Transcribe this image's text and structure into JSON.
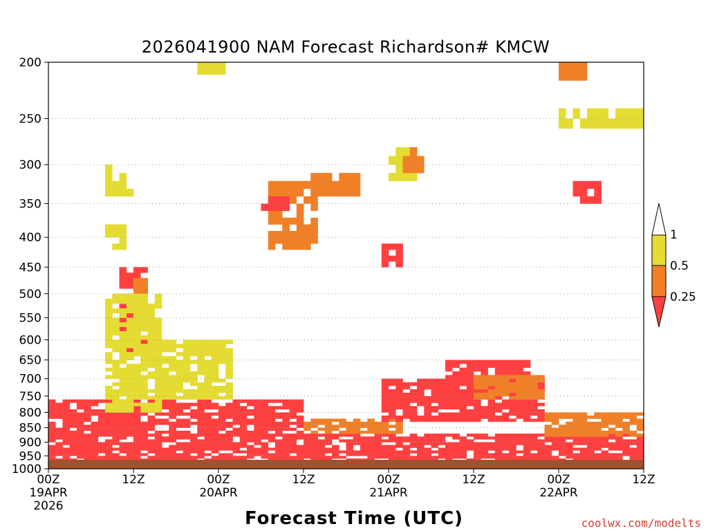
{
  "chart_data": {
    "type": "heatmap",
    "title": "2026041900 NAM Forecast Richardson# KMCW",
    "xlabel": "Forecast Time (UTC)",
    "ylabel": "",
    "x_range_hours": [
      0,
      84
    ],
    "y_range_hpa": [
      200,
      1000
    ],
    "y_scale": "log",
    "y_ticks": [
      200,
      250,
      300,
      350,
      400,
      450,
      500,
      550,
      600,
      650,
      700,
      750,
      800,
      850,
      900,
      950,
      1000
    ],
    "x_ticks": [
      {
        "hour": 0,
        "lines": [
          "00Z",
          "19APR",
          "2026"
        ]
      },
      {
        "hour": 12,
        "lines": [
          "12Z"
        ]
      },
      {
        "hour": 24,
        "lines": [
          "00Z",
          "20APR"
        ]
      },
      {
        "hour": 36,
        "lines": [
          "12Z"
        ]
      },
      {
        "hour": 48,
        "lines": [
          "00Z",
          "21APR"
        ]
      },
      {
        "hour": 60,
        "lines": [
          "12Z"
        ]
      },
      {
        "hour": 72,
        "lines": [
          "00Z",
          "22APR"
        ]
      },
      {
        "hour": 84,
        "lines": [
          "12Z"
        ]
      }
    ],
    "grid": "dotted horizontal at pressure levels",
    "legend": {
      "position": "right",
      "labels": [
        "1",
        "0.5",
        "0.25"
      ],
      "bins": [
        {
          "range": "0.5-1",
          "color": "#e4dc32"
        },
        {
          "range": "0.25-0.5",
          "color": "#f08028"
        },
        {
          "range": "<0.25",
          "color": "#ff4040"
        }
      ]
    },
    "colors": {
      "low": "#ff4040",
      "mid": "#f08028",
      "high": "#e4dc32",
      "ground": "#a0522d"
    },
    "ground_below_hpa": 965,
    "regions": [
      {
        "h": [
          0,
          84
        ],
        "p": [
          870,
          965
        ],
        "cat": "low"
      },
      {
        "h": [
          0,
          36
        ],
        "p": [
          760,
          870
        ],
        "cat": "low"
      },
      {
        "h": [
          36,
          50
        ],
        "p": [
          820,
          870
        ],
        "cat": "mid"
      },
      {
        "h": [
          47,
          70
        ],
        "p": [
          700,
          830
        ],
        "cat": "low"
      },
      {
        "h": [
          56,
          68
        ],
        "p": [
          650,
          720
        ],
        "cat": "low"
      },
      {
        "h": [
          60,
          70
        ],
        "p": [
          690,
          760
        ],
        "cat": "mid"
      },
      {
        "h": [
          70,
          84
        ],
        "p": [
          800,
          880
        ],
        "cat": "mid"
      },
      {
        "h": [
          10,
          14
        ],
        "p": [
          450,
          650
        ],
        "cat": "low"
      },
      {
        "h": [
          12,
          14
        ],
        "p": [
          470,
          560
        ],
        "cat": "mid"
      },
      {
        "h": [
          8,
          16
        ],
        "p": [
          500,
          800
        ],
        "cat": "high"
      },
      {
        "h": [
          16,
          26
        ],
        "p": [
          600,
          760
        ],
        "cat": "high"
      },
      {
        "h": [
          8,
          12
        ],
        "p": [
          300,
          340
        ],
        "cat": "high"
      },
      {
        "h": [
          8,
          11
        ],
        "p": [
          380,
          420
        ],
        "cat": "high"
      },
      {
        "h": [
          21,
          25
        ],
        "p": [
          200,
          210
        ],
        "cat": "high"
      },
      {
        "h": [
          31,
          38
        ],
        "p": [
          320,
          420
        ],
        "cat": "mid"
      },
      {
        "h": [
          37,
          44
        ],
        "p": [
          310,
          340
        ],
        "cat": "mid"
      },
      {
        "h": [
          30,
          34
        ],
        "p": [
          340,
          360
        ],
        "cat": "low"
      },
      {
        "h": [
          48,
          52
        ],
        "p": [
          280,
          320
        ],
        "cat": "high"
      },
      {
        "h": [
          50,
          53
        ],
        "p": [
          280,
          310
        ],
        "cat": "mid"
      },
      {
        "h": [
          47,
          50
        ],
        "p": [
          410,
          450
        ],
        "cat": "low"
      },
      {
        "h": [
          72,
          76
        ],
        "p": [
          200,
          215
        ],
        "cat": "mid"
      },
      {
        "h": [
          72,
          84
        ],
        "p": [
          240,
          260
        ],
        "cat": "high"
      },
      {
        "h": [
          74,
          78
        ],
        "p": [
          320,
          350
        ],
        "cat": "low"
      }
    ]
  },
  "credit": "coolwx.com/modelts"
}
